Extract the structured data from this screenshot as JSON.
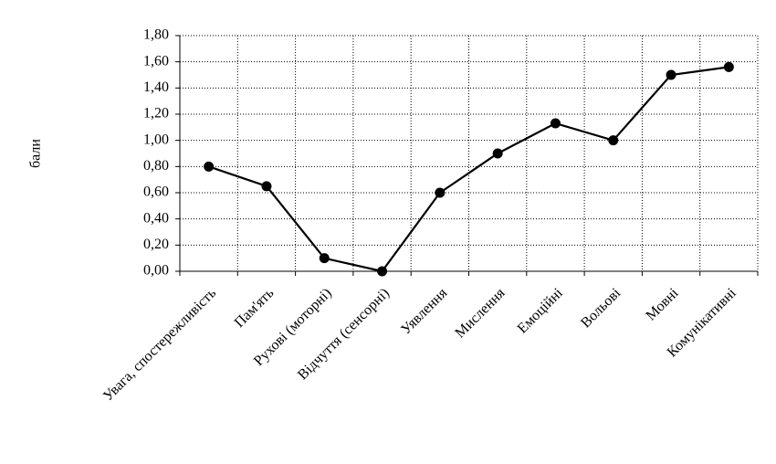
{
  "chart_data": {
    "type": "line",
    "y_label": "бали",
    "categories": [
      "Увага, спостережливість",
      "Пам'ять",
      "Рухові (моторні)",
      "Відчуття (сенсорні)",
      "Уявлення",
      "Мислення",
      "Емоційні",
      "Вольові",
      "Мовні",
      "Комунікативні"
    ],
    "values": [
      0.8,
      0.65,
      0.1,
      0.0,
      0.6,
      0.9,
      1.13,
      1.0,
      1.5,
      1.56
    ],
    "color": "#000000",
    "ylim": [
      0,
      1.8
    ],
    "yticks": [
      {
        "value": 0,
        "label": "0,00"
      },
      {
        "value": 0.2,
        "label": "0,20"
      },
      {
        "value": 0.4,
        "label": "0,40"
      },
      {
        "value": 0.6,
        "label": "0,60"
      },
      {
        "value": 0.8,
        "label": "0,80"
      },
      {
        "value": 1.0,
        "label": "1,00"
      },
      {
        "value": 1.2,
        "label": "1,20"
      },
      {
        "value": 1.4,
        "label": "1,40"
      },
      {
        "value": 1.6,
        "label": "1,60"
      },
      {
        "value": 1.8,
        "label": "1,80"
      }
    ],
    "grid": true
  }
}
